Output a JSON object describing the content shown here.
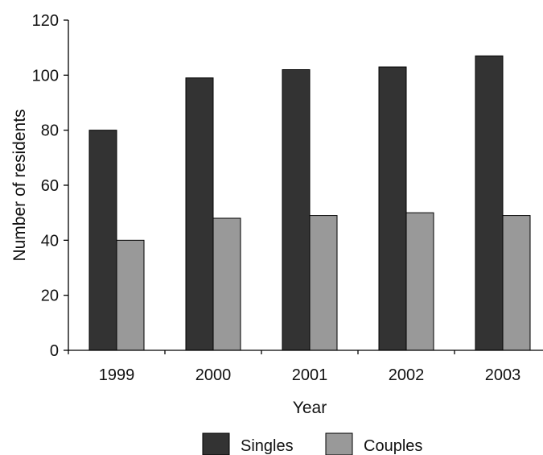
{
  "chart_data": {
    "type": "bar",
    "title": "",
    "xlabel": "Year",
    "ylabel": "Number of residents",
    "categories": [
      "1999",
      "2000",
      "2001",
      "2002",
      "2003"
    ],
    "ylim": [
      0,
      120
    ],
    "yticks": [
      "0",
      "20",
      "40",
      "60",
      "80",
      "100",
      "120"
    ],
    "grid": false,
    "legend_position": "bottom",
    "series": [
      {
        "name": "Singles",
        "values": [
          80,
          99,
          102,
          103,
          107
        ],
        "color": "#333333"
      },
      {
        "name": "Couples",
        "values": [
          40,
          48,
          49,
          50,
          49
        ],
        "color": "#999999"
      }
    ]
  }
}
